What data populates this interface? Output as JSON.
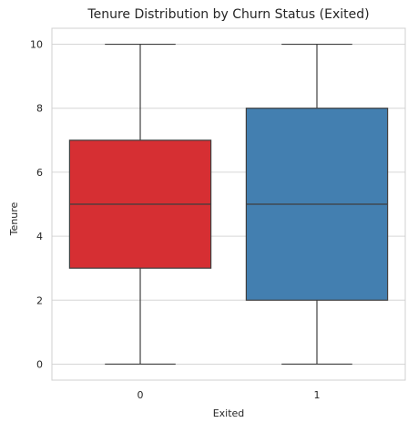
{
  "chart_data": {
    "type": "box",
    "title": "Tenure Distribution by Churn Status (Exited)",
    "xlabel": "Exited",
    "ylabel": "Tenure",
    "categories": [
      "0",
      "1"
    ],
    "ylim": [
      -0.5,
      10.5
    ],
    "yticks": [
      0,
      2,
      4,
      6,
      8,
      10
    ],
    "grid": true,
    "boxes": [
      {
        "category": "0",
        "min": 0,
        "q1": 3,
        "median": 5,
        "q3": 7,
        "max": 10,
        "color": "#d62f33"
      },
      {
        "category": "1",
        "min": 0,
        "q1": 2,
        "median": 5,
        "q3": 8,
        "max": 10,
        "color": "#437fb0"
      }
    ]
  }
}
